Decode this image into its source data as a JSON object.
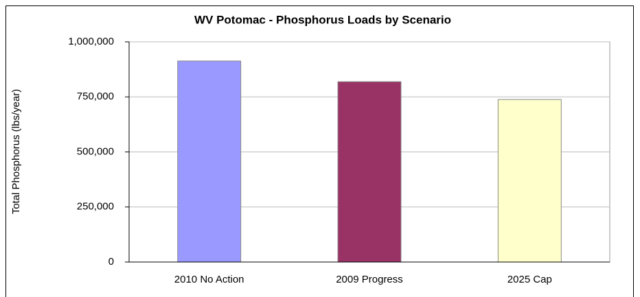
{
  "chart_data": {
    "type": "bar",
    "title": "WV Potomac - Phosphorus Loads by Scenario",
    "y_label": "Total Phosphorus (lbs/year)",
    "categories": [
      "2010 No Action",
      "2009 Progress",
      "2025 Cap"
    ],
    "values": [
      913000,
      819000,
      738000
    ],
    "colors": [
      "#9999ff",
      "#993366",
      "#ffffcc"
    ],
    "ylim": [
      0,
      1000000
    ],
    "yticks": [
      0,
      {
        "value": 250000,
        "label": "250,000"
      },
      {
        "value": 500000,
        "label": "500,000"
      },
      {
        "value": 750000,
        "label": "750,000"
      },
      {
        "value": 1000000,
        "label": "1,000,000"
      }
    ],
    "grid": true
  }
}
